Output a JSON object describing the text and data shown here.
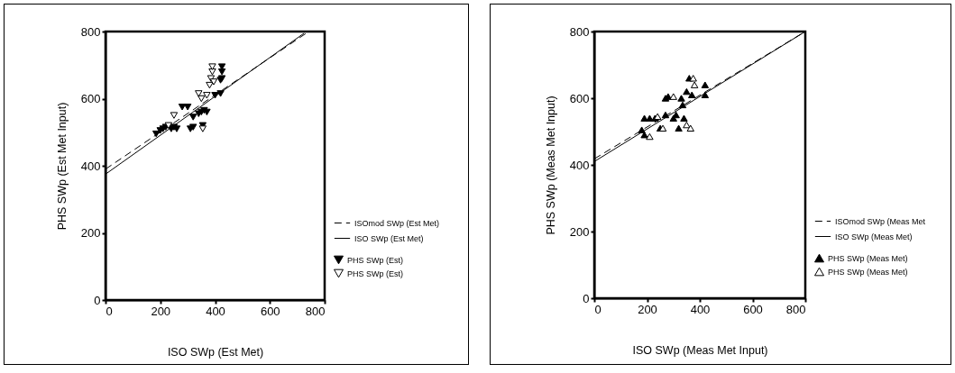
{
  "chart_data": [
    {
      "type": "scatter",
      "xlabel": "ISO SWp (Est Met)",
      "ylabel": "PHS SWp (Est Met Input)",
      "xlim": [
        0,
        800
      ],
      "ylim": [
        0,
        800
      ],
      "xticks": [
        0,
        200,
        400,
        600,
        800
      ],
      "yticks": [
        0,
        200,
        400,
        600,
        800
      ],
      "grid": false,
      "legend": "bottom right",
      "series": [
        {
          "name": "PHS SWp (Est)",
          "type": "scatter",
          "marker": "triangle-down",
          "color": "#000000",
          "x": [
            185,
            200,
            210,
            220,
            240,
            250,
            260,
            280,
            300,
            310,
            320,
            320,
            340,
            350,
            360,
            370,
            355,
            400,
            420,
            425,
            425,
            425,
            420
          ],
          "values": [
            495,
            505,
            510,
            515,
            510,
            515,
            510,
            575,
            575,
            510,
            515,
            545,
            555,
            560,
            565,
            560,
            520,
            610,
            655,
            660,
            680,
            695,
            615
          ]
        },
        {
          "name": "PHS SWp (Est)",
          "type": "scatter",
          "marker": "triangle-down",
          "color": "#ffffff",
          "x": [
            250,
            340,
            350,
            355,
            370,
            380,
            385,
            390,
            390,
            395,
            230
          ],
          "values": [
            550,
            615,
            600,
            510,
            610,
            640,
            660,
            680,
            695,
            650,
            520
          ]
        },
        {
          "name": "ISOmod SWp (Est Met)",
          "type": "line",
          "line_style": "dashed",
          "color": "#000000",
          "x": [
            0,
            742
          ],
          "values": [
            390,
            800
          ]
        },
        {
          "name": "ISO SWp (Est Met)",
          "type": "line",
          "line_style": "solid",
          "color": "#000000",
          "x": [
            0,
            725
          ],
          "values": [
            375,
            795
          ]
        }
      ]
    },
    {
      "type": "scatter",
      "xlabel": "ISO SWp (Meas Met Input)",
      "ylabel": "PHS SWp (Meas Met Input)",
      "xlim": [
        0,
        800
      ],
      "ylim": [
        0,
        800
      ],
      "xticks": [
        0,
        200,
        400,
        600,
        800
      ],
      "yticks": [
        0,
        200,
        400,
        600,
        800
      ],
      "grid": false,
      "legend": "bottom right",
      "series": [
        {
          "name": "PHS SWp (Meas Met)",
          "type": "scatter",
          "marker": "triangle",
          "color": "#000000",
          "x": [
            180,
            190,
            190,
            210,
            230,
            250,
            270,
            280,
            270,
            300,
            310,
            320,
            330,
            350,
            370,
            340,
            360,
            420,
            420,
            335
          ],
          "values": [
            505,
            490,
            540,
            540,
            540,
            510,
            600,
            605,
            550,
            540,
            550,
            510,
            600,
            620,
            610,
            540,
            660,
            640,
            610,
            580
          ]
        },
        {
          "name": "PHS SWp (Meas Met)",
          "type": "scatter",
          "marker": "triangle",
          "color": "#ffffff",
          "x": [
            210,
            260,
            300,
            350,
            365,
            375,
            380,
            240
          ],
          "values": [
            485,
            510,
            605,
            520,
            510,
            660,
            640,
            545
          ]
        },
        {
          "name": "ISOmod SWp (Meas Met",
          "type": "line",
          "line_style": "dashed",
          "color": "#000000",
          "x": [
            0,
            800
          ],
          "values": [
            418,
            800
          ]
        },
        {
          "name": "ISO SWp (Meas Met)",
          "type": "line",
          "line_style": "solid",
          "color": "#000000",
          "x": [
            0,
            800
          ],
          "values": [
            410,
            800
          ]
        }
      ]
    }
  ]
}
